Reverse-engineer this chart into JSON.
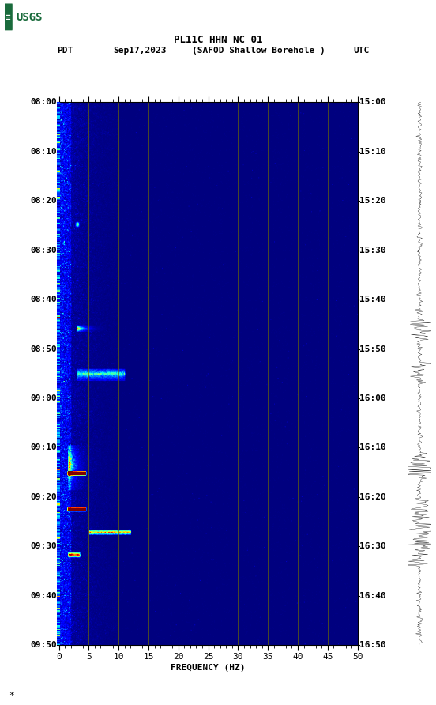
{
  "title_line1": "PL11C HHN NC 01",
  "title_line2": "(SAFOD Shallow Borehole )",
  "date": "Sep17,2023",
  "left_label": "PDT",
  "right_label": "UTC",
  "left_times": [
    "08:00",
    "08:10",
    "08:20",
    "08:30",
    "08:40",
    "08:50",
    "09:00",
    "09:10",
    "09:20",
    "09:30",
    "09:40",
    "09:50"
  ],
  "right_times": [
    "15:00",
    "15:10",
    "15:20",
    "15:30",
    "15:40",
    "15:50",
    "16:00",
    "16:10",
    "16:20",
    "16:30",
    "16:40",
    "16:50"
  ],
  "freq_min": 0,
  "freq_max": 50,
  "freq_ticks": [
    0,
    5,
    10,
    15,
    20,
    25,
    30,
    35,
    40,
    45,
    50
  ],
  "xlabel": "FREQUENCY (HZ)",
  "bg_color": "#000080",
  "vertical_lines_color": "#6b6b00",
  "colormap": "jet",
  "fig_width": 5.52,
  "fig_height": 8.92,
  "dpi": 100,
  "usgs_green": "#1a6b3c",
  "n_times": 720,
  "n_freqs": 500
}
